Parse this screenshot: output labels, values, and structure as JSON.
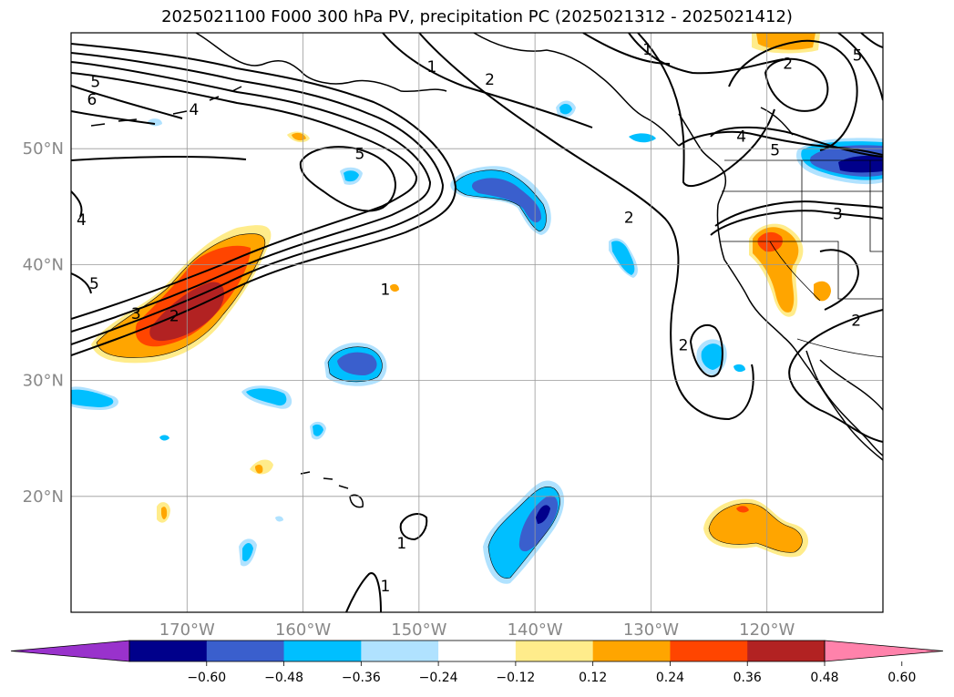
{
  "title": "2025021100 F000 300 hPa PV, precipitation PC (2025021312 - 2025021412)",
  "map": {
    "lon_range": [
      -180,
      -110
    ],
    "lat_range": [
      10,
      60
    ],
    "lat_ticks": [
      {
        "value": 50,
        "label": "50°N"
      },
      {
        "value": 40,
        "label": "40°N"
      },
      {
        "value": 30,
        "label": "30°N"
      },
      {
        "value": 20,
        "label": "20°N"
      }
    ],
    "lon_ticks": [
      {
        "value": -170,
        "label": "170°W"
      },
      {
        "value": -160,
        "label": "160°W"
      },
      {
        "value": -150,
        "label": "150°W"
      },
      {
        "value": -140,
        "label": "140°W"
      },
      {
        "value": -130,
        "label": "130°W"
      },
      {
        "value": -120,
        "label": "120°W"
      }
    ],
    "grid": true
  },
  "colorbar": {
    "colors": [
      "#9932cc",
      "#00008b",
      "#3a5fcd",
      "#00bfff",
      "#b0e2ff",
      "#ffffff",
      "#ffec8b",
      "#ffa500",
      "#ff4500",
      "#b22222",
      "#ff82ab"
    ],
    "labels": [
      "−0.60",
      "−0.48",
      "−0.36",
      "−0.24",
      "−0.12",
      "0.12",
      "0.24",
      "0.36",
      "0.48",
      "0.60"
    ],
    "extend": "both"
  },
  "pv_labels": [
    {
      "text": "5",
      "lon": -177.9,
      "lat": 55.7
    },
    {
      "text": "6",
      "lon": -178.2,
      "lat": 54.2
    },
    {
      "text": "4",
      "lon": -169.4,
      "lat": 53.3
    },
    {
      "text": "1",
      "lon": -148.9,
      "lat": 57.0
    },
    {
      "text": "2",
      "lon": -143.9,
      "lat": 55.9
    },
    {
      "text": "5",
      "lon": -155.1,
      "lat": 49.5
    },
    {
      "text": "1",
      "lon": -130.3,
      "lat": 58.5
    },
    {
      "text": "2",
      "lon": -118.2,
      "lat": 57.3
    },
    {
      "text": "5",
      "lon": -112.2,
      "lat": 58.0
    },
    {
      "text": "4",
      "lon": -122.2,
      "lat": 51.0
    },
    {
      "text": "5",
      "lon": -119.3,
      "lat": 49.8
    },
    {
      "text": "3",
      "lon": -113.9,
      "lat": 44.3
    },
    {
      "text": "2",
      "lon": -131.9,
      "lat": 44.0
    },
    {
      "text": "1",
      "lon": -152.9,
      "lat": 37.8
    },
    {
      "text": "3",
      "lon": -174.4,
      "lat": 35.7
    },
    {
      "text": "2",
      "lon": -171.1,
      "lat": 35.5
    },
    {
      "text": "2",
      "lon": -127.2,
      "lat": 33.0
    },
    {
      "text": "2",
      "lon": -112.3,
      "lat": 35.1
    },
    {
      "text": "4",
      "lon": -179.1,
      "lat": 43.8
    },
    {
      "text": "5",
      "lon": -178.0,
      "lat": 38.3
    },
    {
      "text": "1",
      "lon": -151.5,
      "lat": 15.9
    },
    {
      "text": "1",
      "lon": -152.9,
      "lat": 12.2
    }
  ]
}
